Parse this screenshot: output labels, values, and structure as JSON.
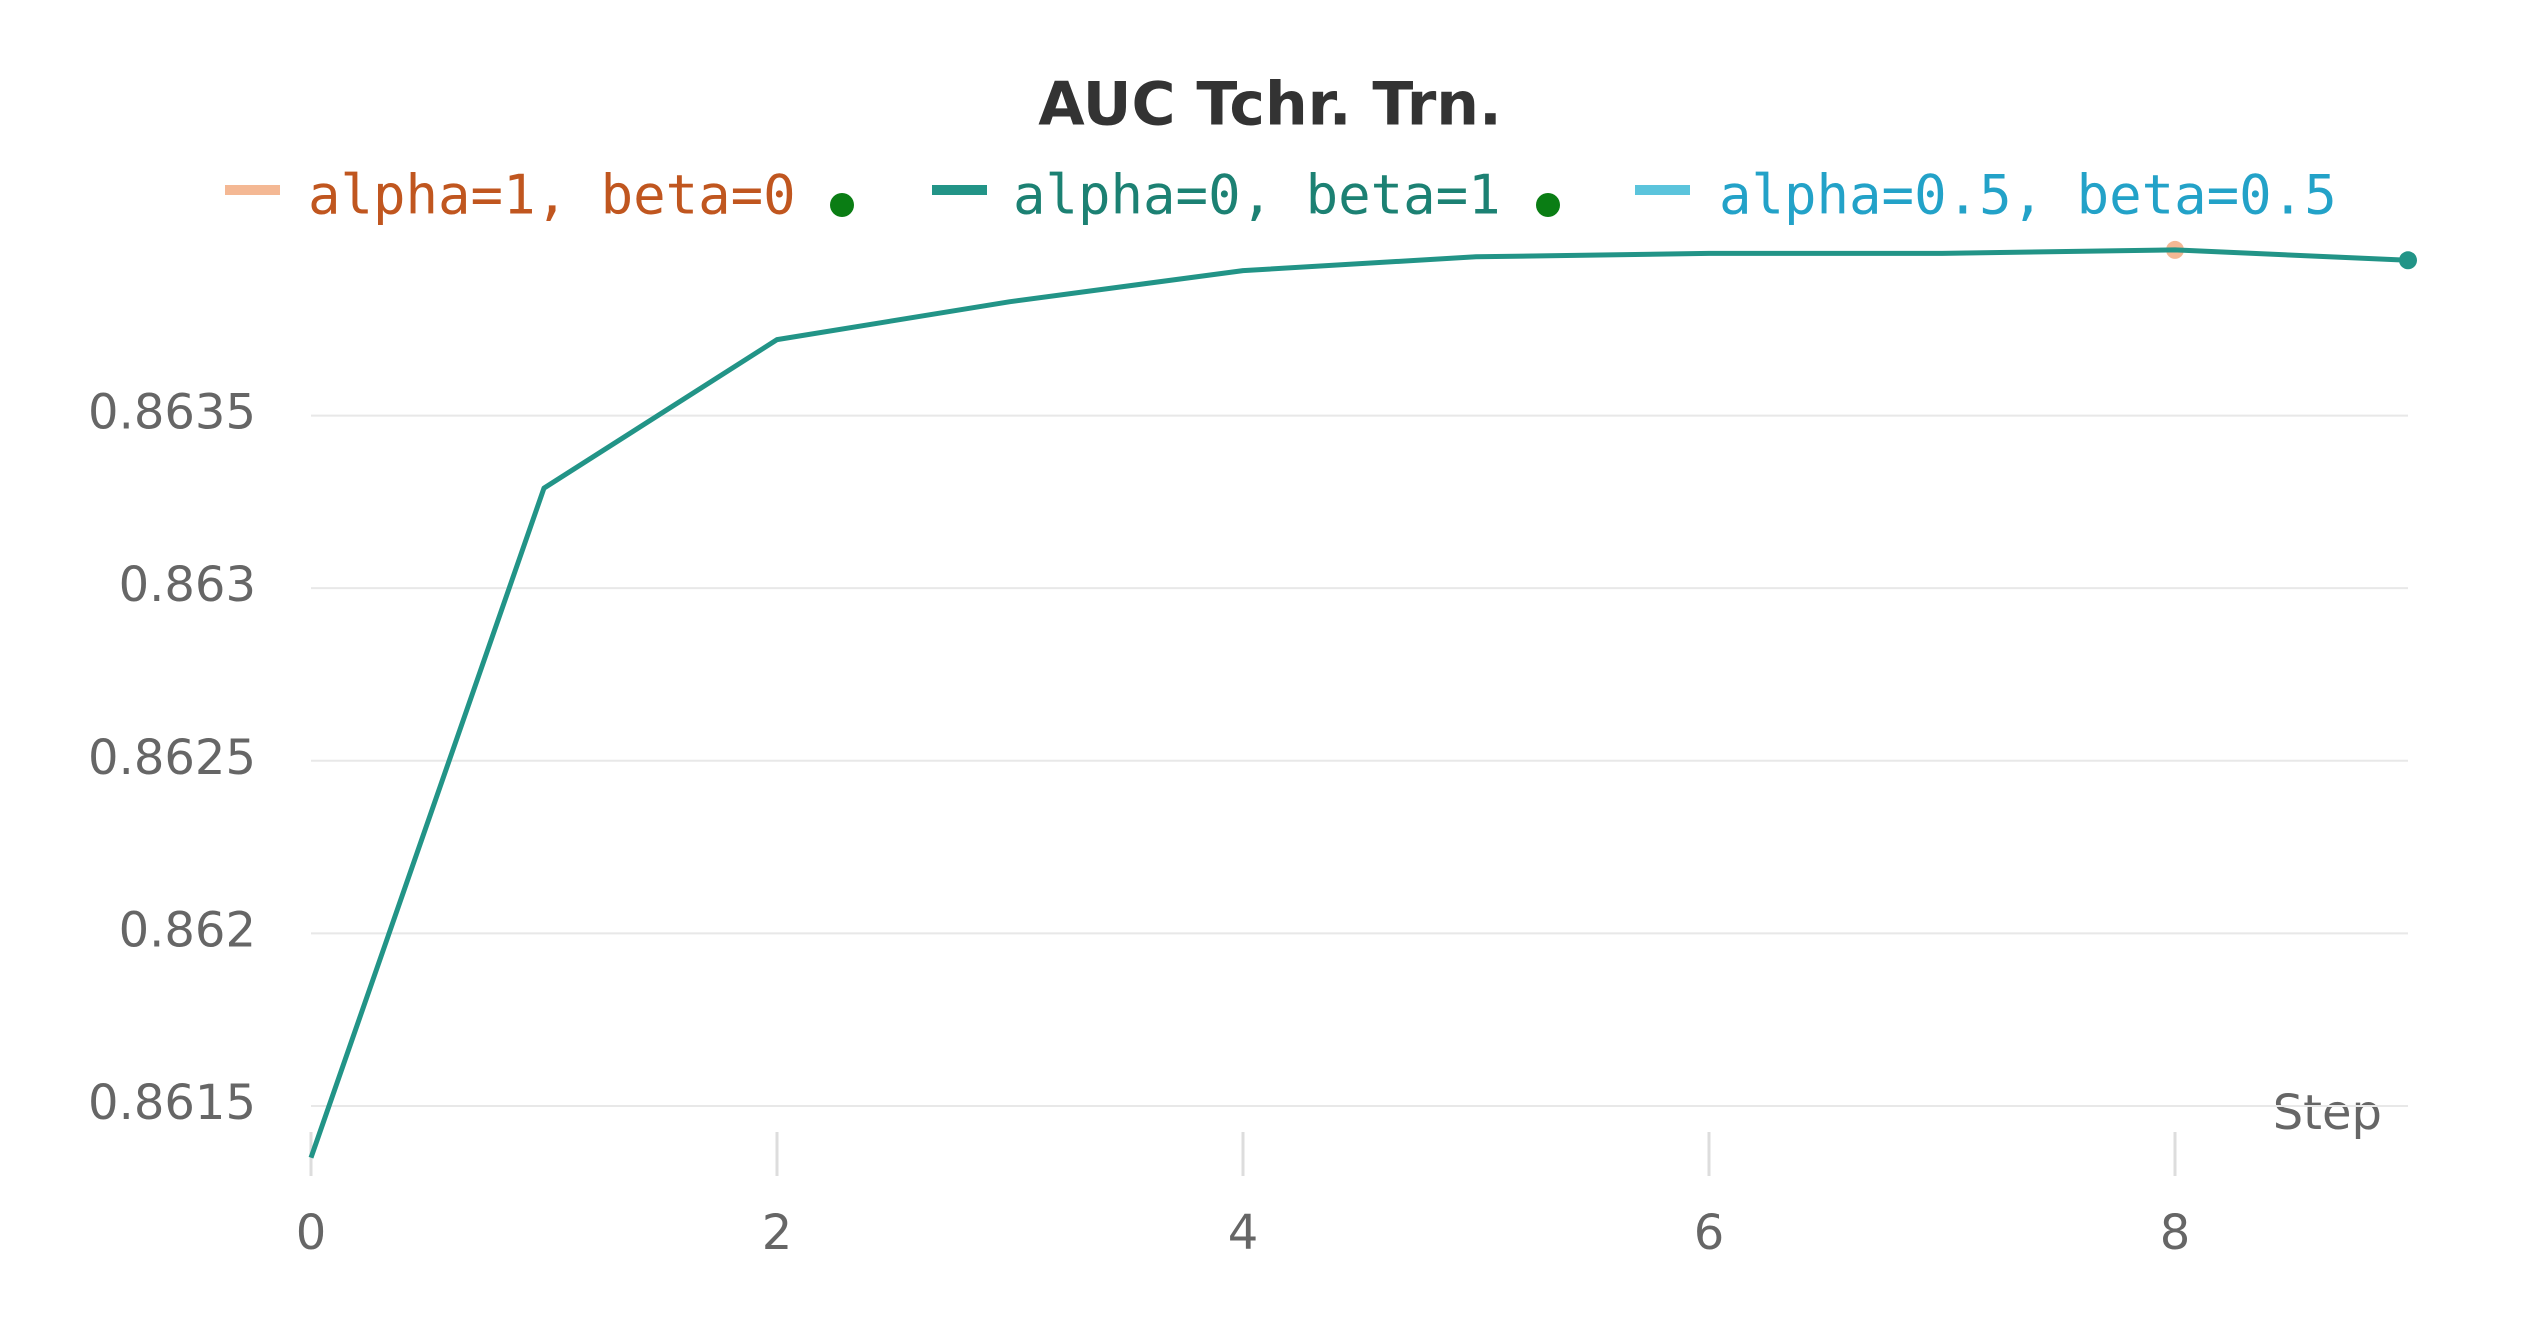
{
  "chart_data": {
    "type": "line",
    "title": "AUC Tchr. Trn.",
    "x_label": "Step",
    "x": [
      0,
      1,
      2,
      3,
      4,
      5,
      6,
      7,
      8,
      9
    ],
    "series": [
      {
        "name": "alpha=1, beta=0",
        "color": "#f4b894",
        "text_color": "#c0561f",
        "values": [
          null,
          null,
          null,
          null,
          null,
          null,
          null,
          null,
          0.86398,
          null
        ]
      },
      {
        "name": "alpha=0, beta=1",
        "color": "#229487",
        "text_color": "#1c8173",
        "values": [
          0.86135,
          0.86329,
          0.86372,
          0.86383,
          0.86392,
          0.86396,
          0.86397,
          0.86397,
          0.86398,
          0.86395
        ]
      },
      {
        "name": "alpha=0.5, beta=0.5",
        "color": "#5bc4dc",
        "text_color": "#23a2c8",
        "values": [
          null,
          null,
          null,
          null,
          null,
          null,
          null,
          null,
          null,
          null
        ]
      }
    ],
    "xlim": [
      0,
      9
    ],
    "xticks": [
      0,
      2,
      4,
      6,
      8
    ],
    "ylim": [
      0.8613,
      0.864
    ],
    "yticks": [
      0.8615,
      0.862,
      0.8625,
      0.863,
      0.8635
    ],
    "grid": true
  }
}
